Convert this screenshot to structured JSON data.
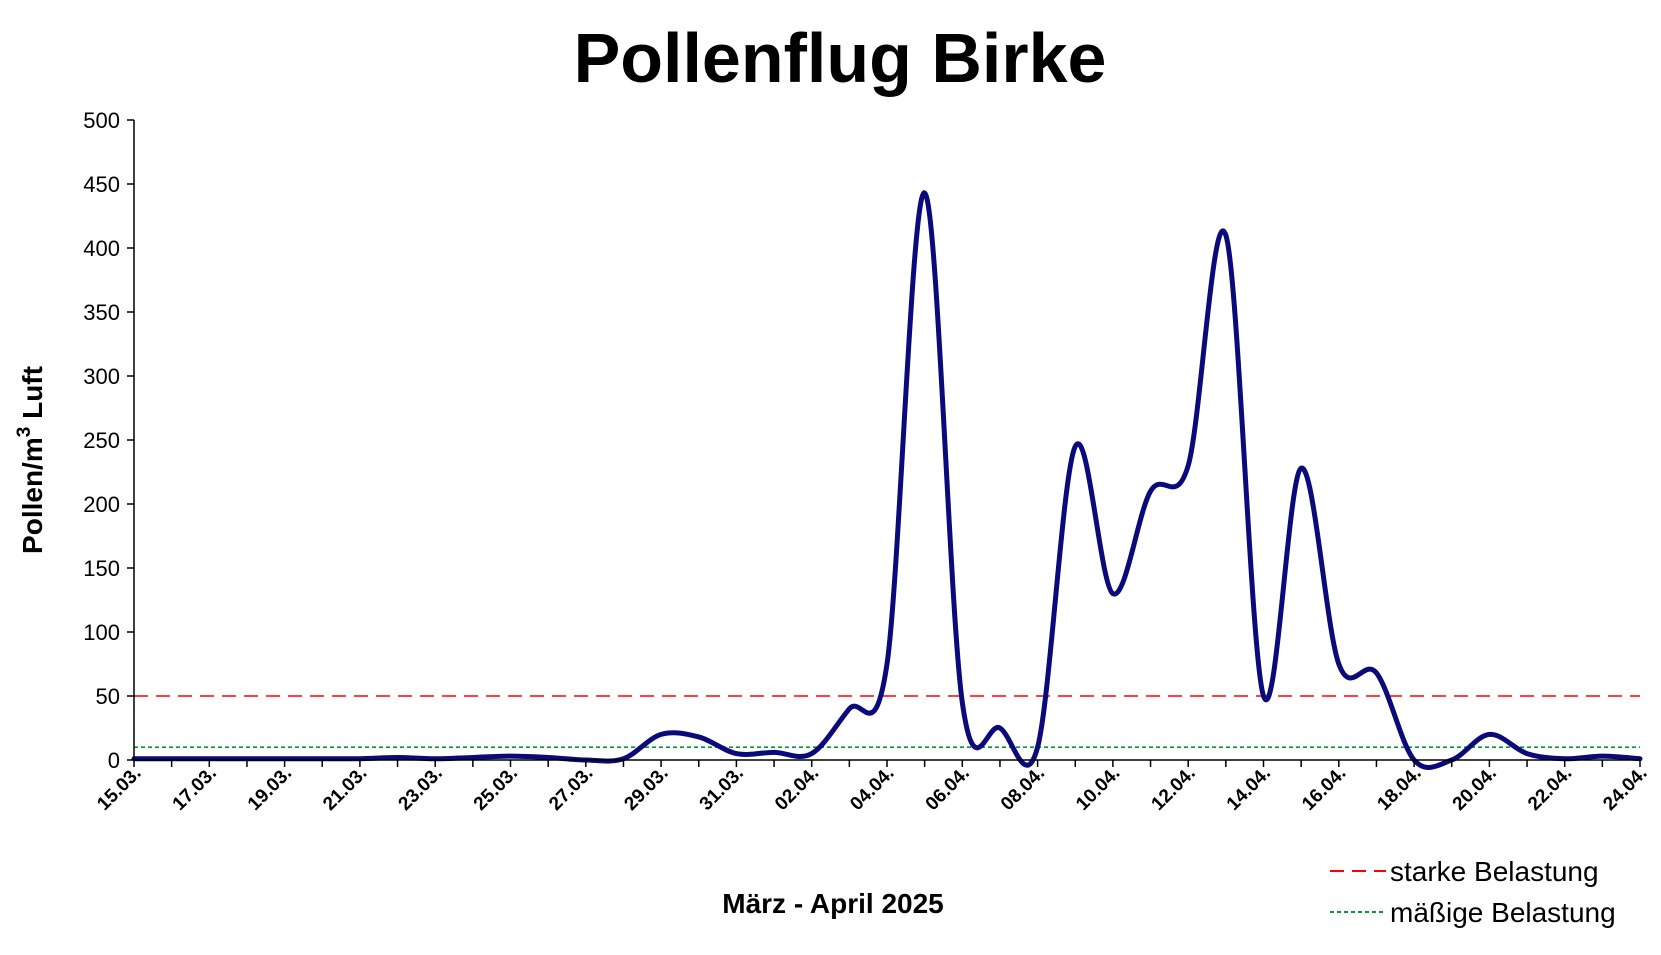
{
  "chart_data": {
    "type": "line",
    "title": "Pollenflug Birke",
    "xlabel": "März - April 2025",
    "ylabel_main": "Pollen/m",
    "ylabel_sup": "3",
    "ylabel_tail": " Luft",
    "ylim": [
      0,
      500
    ],
    "yticks": [
      0,
      50,
      100,
      150,
      200,
      250,
      300,
      350,
      400,
      450,
      500
    ],
    "x": [
      "15.03.",
      "16.03.",
      "17.03.",
      "18.03.",
      "19.03.",
      "20.03.",
      "21.03.",
      "22.03.",
      "23.03.",
      "24.03.",
      "25.03.",
      "26.03.",
      "27.03.",
      "28.03.",
      "29.03.",
      "30.03.",
      "31.03.",
      "01.04.",
      "02.04.",
      "03.04.",
      "04.04.",
      "05.04.",
      "06.04.",
      "07.04.",
      "08.04.",
      "09.04.",
      "10.04.",
      "11.04.",
      "12.04.",
      "13.04.",
      "14.04.",
      "15.04.",
      "16.04.",
      "17.04.",
      "18.04.",
      "19.04.",
      "20.04.",
      "21.04.",
      "22.04.",
      "23.04.",
      "24.04."
    ],
    "xtick_labels": [
      "15.03.",
      "17.03.",
      "19.03.",
      "21.03.",
      "23.03.",
      "25.03.",
      "27.03.",
      "29.03.",
      "31.03.",
      "02.04.",
      "04.04.",
      "06.04.",
      "08.04.",
      "10.04.",
      "12.04.",
      "14.04.",
      "16.04.",
      "18.04.",
      "20.04.",
      "22.04.",
      "24.04."
    ],
    "series": [
      {
        "color": "#0a0a7a",
        "values": [
          1,
          1,
          1,
          1,
          1,
          1,
          1,
          2,
          1,
          2,
          3,
          2,
          0,
          1,
          20,
          18,
          5,
          6,
          5,
          40,
          75,
          443,
          45,
          25,
          10,
          245,
          130,
          210,
          230,
          410,
          50,
          228,
          75,
          68,
          0,
          0,
          20,
          5,
          1,
          3,
          1
        ]
      }
    ],
    "thresholds": [
      {
        "name": "starke Belastung",
        "value": 50,
        "color": "#ff0000",
        "style": "dashed"
      },
      {
        "name": "mäßige Belastung",
        "value": 10,
        "color": "#009933",
        "style": "dotted"
      }
    ],
    "legend_position": "bottom-right",
    "grid": false
  }
}
